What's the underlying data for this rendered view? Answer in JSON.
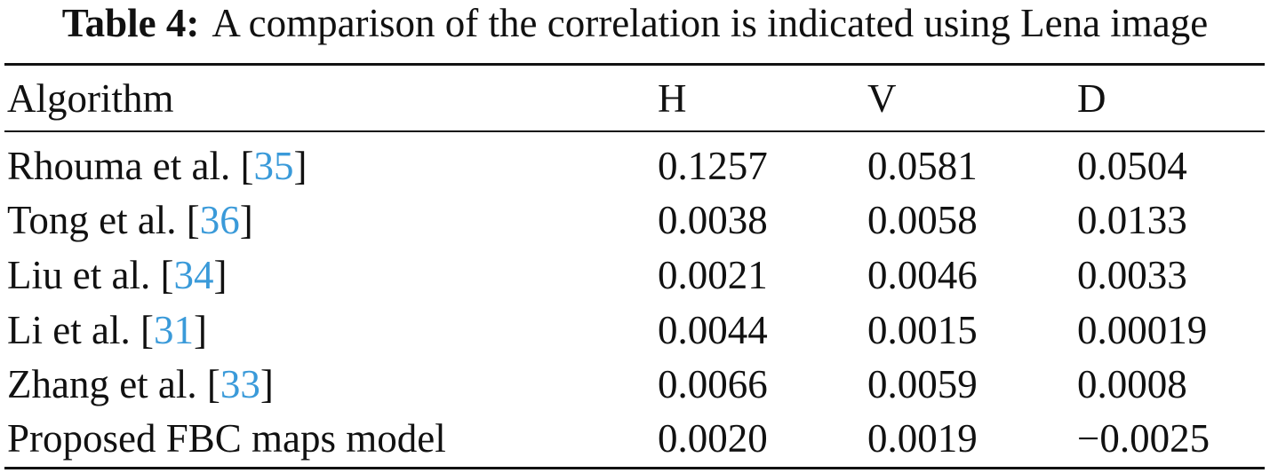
{
  "caption": {
    "label": "Table 4:",
    "text": "A comparison of the correlation is indicated using Lena image"
  },
  "table": {
    "headers": {
      "algorithm": "Algorithm",
      "h": "H",
      "v": "V",
      "d": "D"
    },
    "rows": [
      {
        "name": "Rhouma et al. [",
        "ref": "35",
        "close": "]",
        "h": "0.1257",
        "v": "0.0581",
        "d": "0.0504"
      },
      {
        "name": "Tong et al. [",
        "ref": "36",
        "close": "]",
        "h": "0.0038",
        "v": "0.0058",
        "d": "0.0133"
      },
      {
        "name": "Liu et al. [",
        "ref": "34",
        "close": "]",
        "h": "0.0021",
        "v": "0.0046",
        "d": "0.0033"
      },
      {
        "name": "Li et al. [",
        "ref": "31",
        "close": "]",
        "h": "0.0044",
        "v": "0.0015",
        "d": "0.00019"
      },
      {
        "name": "Zhang et al. [",
        "ref": "33",
        "close": "]",
        "h": "0.0066",
        "v": "0.0059",
        "d": "0.0008"
      },
      {
        "name": "Proposed FBC maps model",
        "ref": "",
        "close": "",
        "h": "0.0020",
        "v": "0.0019",
        "d": "−0.0025"
      }
    ]
  },
  "colors": {
    "reference_link": "#3a9ad9",
    "text": "#111111"
  }
}
